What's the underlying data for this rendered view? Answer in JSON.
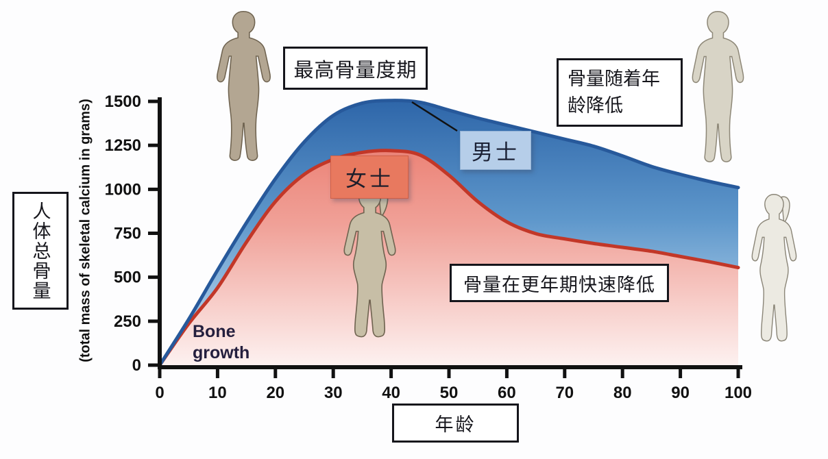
{
  "labels": {
    "peak": "最高骨量度期",
    "age_decline_line1": "骨量随着年",
    "age_decline_line2": "龄降低",
    "male": "男士",
    "female": "女士",
    "menopause": "骨量在更年期快速降低",
    "bone_growth_line1": "Bone",
    "bone_growth_line2": "growth",
    "x_axis": "年龄",
    "y_axis_cn": "人体总骨量",
    "y_axis_en": "(total mass of skeletal calcium in grams)"
  },
  "icons": {
    "male_silhouette_left": "standing-man-figure",
    "male_silhouette_right": "standing-man-figure",
    "female_silhouette_right": "standing-woman-figure-ponytail",
    "female_silhouette_center": "standing-woman-figure-ponytail"
  },
  "colors": {
    "male_line": "#27599b",
    "male_fill_top": "#2e66a9",
    "male_fill_mid": "#5e97cb",
    "male_fill_bottom": "#cde3f4",
    "female_line": "#c23728",
    "female_fill_top": "#ec8478",
    "female_fill_mid": "#f0a198",
    "female_fill_bottom": "#fdf1f0",
    "axis": "#111111",
    "male_box_bg": "#b6cee9",
    "female_box_bg": "#e8795f"
  },
  "chart_data": {
    "type": "area",
    "title": "",
    "xlabel": "年龄",
    "ylabel": "人体总骨量 (total mass of skeletal calcium in grams)",
    "xlim": [
      0,
      100
    ],
    "ylim": [
      0,
      1500
    ],
    "x_ticks": [
      0,
      10,
      20,
      30,
      40,
      50,
      60,
      70,
      80,
      90,
      100
    ],
    "y_ticks": [
      0,
      250,
      500,
      750,
      1000,
      1250,
      1500
    ],
    "grid": false,
    "x": [
      0,
      5,
      10,
      15,
      20,
      25,
      30,
      35,
      40,
      45,
      50,
      55,
      60,
      65,
      70,
      75,
      80,
      85,
      90,
      95,
      100
    ],
    "series": [
      {
        "name": "男士 (men)",
        "values": [
          0,
          260,
          540,
          810,
          1060,
          1270,
          1420,
          1490,
          1505,
          1495,
          1450,
          1405,
          1365,
          1325,
          1285,
          1245,
          1190,
          1130,
          1085,
          1045,
          1010
        ]
      },
      {
        "name": "女士 (women)",
        "values": [
          0,
          235,
          440,
          700,
          930,
          1085,
          1170,
          1210,
          1220,
          1195,
          1080,
          930,
          815,
          748,
          718,
          692,
          670,
          648,
          618,
          588,
          555
        ]
      }
    ],
    "annotations": [
      {
        "text": "最高骨量度期",
        "meaning": "peak bone mass period",
        "points_to": "top of male curve near age 35-45"
      },
      {
        "text": "骨量随着年龄降低",
        "meaning": "bone mass decreases with age"
      },
      {
        "text": "骨量在更年期快速降低",
        "meaning": "bone mass drops rapidly at menopause"
      },
      {
        "text": "Bone growth",
        "position": "near origin, ages 0-15"
      },
      {
        "text": "男士",
        "series": "men"
      },
      {
        "text": "女士",
        "series": "women"
      }
    ],
    "legend_position": "labels on curves"
  }
}
